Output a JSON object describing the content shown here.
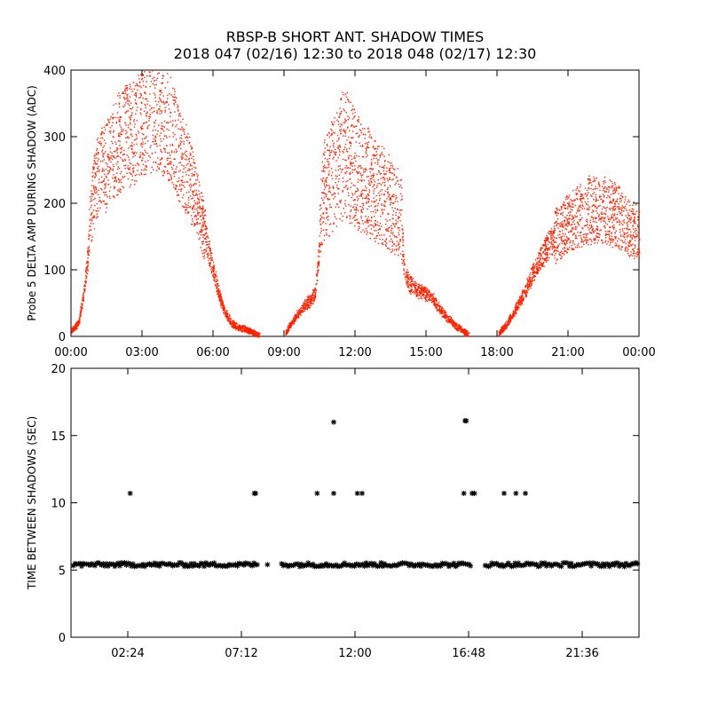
{
  "title_line1": "RBSP-B SHORT ANT. SHADOW TIMES",
  "title_line2": "2018 047 (02/16) 12:30 to 2018 048 (02/17) 12:30",
  "colors": {
    "top_series": "#ff2200",
    "bottom_series": "#000000",
    "axes": "#000000"
  },
  "chart_data": [
    {
      "type": "scatter",
      "title": "",
      "ylabel": "Probe 5 DELTA AMP DURING SHADOW (ADC)",
      "xlabel": "",
      "x_unit": "hours",
      "xlim": [
        0,
        24
      ],
      "ylim": [
        0,
        400
      ],
      "x_ticks": [
        0,
        3,
        6,
        9,
        12,
        15,
        18,
        21,
        24
      ],
      "x_tick_labels": [
        "00:00",
        "03:00",
        "06:00",
        "09:00",
        "12:00",
        "15:00",
        "18:00",
        "21:00",
        "00:00"
      ],
      "y_ticks": [
        0,
        100,
        200,
        300,
        400
      ],
      "y_tick_labels": [
        "0",
        "100",
        "200",
        "300",
        "400"
      ],
      "grid": false,
      "series": [
        {
          "x": [
            0.0,
            0.3,
            0.5,
            0.7,
            0.8,
            1.0,
            1.3,
            1.7,
            2.0,
            2.3,
            2.6,
            3.0,
            3.3,
            3.6,
            4.0,
            4.3,
            4.6,
            5.0,
            5.3,
            5.6,
            5.8,
            6.0,
            6.2,
            6.4,
            6.6,
            6.8,
            7.0,
            7.3,
            7.6,
            7.8,
            7.95,
            9.05,
            9.2,
            9.5,
            9.8,
            10.1,
            10.3,
            10.45,
            10.55,
            10.7,
            11.0,
            11.3,
            11.5,
            11.7,
            12.0,
            12.3,
            12.6,
            12.9,
            13.2,
            13.5,
            13.8,
            13.95,
            14.05,
            14.3,
            14.6,
            15.0,
            15.3,
            15.6,
            15.9,
            16.2,
            16.5,
            16.8,
            18.05,
            18.3,
            18.6,
            18.9,
            19.2,
            19.5,
            19.8,
            20.1,
            20.4,
            20.7,
            21.0,
            21.3,
            21.6,
            21.9,
            22.2,
            22.5,
            22.8,
            23.1,
            23.4,
            23.7,
            24.0
          ],
          "y": [
            10,
            20,
            60,
            120,
            180,
            230,
            250,
            270,
            290,
            300,
            310,
            320,
            330,
            335,
            320,
            300,
            270,
            240,
            200,
            160,
            130,
            100,
            70,
            45,
            30,
            20,
            15,
            12,
            8,
            4,
            2,
            5,
            15,
            30,
            45,
            55,
            65,
            120,
            200,
            220,
            240,
            260,
            280,
            270,
            250,
            240,
            230,
            220,
            210,
            200,
            190,
            180,
            100,
            80,
            70,
            65,
            55,
            40,
            28,
            18,
            10,
            3,
            5,
            15,
            30,
            50,
            70,
            95,
            115,
            135,
            150,
            160,
            170,
            178,
            184,
            190,
            192,
            190,
            186,
            180,
            170,
            160,
            150
          ]
        }
      ]
    },
    {
      "type": "scatter",
      "title": "",
      "ylabel": "TIME BETWEEN SHADOWS (SEC)",
      "xlabel": "",
      "x_unit": "hours",
      "xlim": [
        0,
        24
      ],
      "ylim": [
        0,
        20
      ],
      "x_ticks": [
        2.4,
        7.2,
        12.0,
        16.8,
        21.6
      ],
      "x_tick_labels": [
        "02:24",
        "07:12",
        "12:00",
        "16:48",
        "21:36"
      ],
      "y_ticks": [
        0,
        5,
        10,
        15,
        20
      ],
      "y_tick_labels": [
        "0",
        "5",
        "10",
        "15",
        "20"
      ],
      "grid": false,
      "marker": "asterisk",
      "series": [
        {
          "baseline_y": 5.4,
          "baseline_ranges": [
            [
              0.1,
              7.9
            ],
            [
              8.3,
              8.3
            ],
            [
              8.9,
              16.95
            ],
            [
              17.5,
              24.0
            ]
          ],
          "outliers_x": [
            2.5,
            7.75,
            7.8,
            10.4,
            11.1,
            11.1,
            12.1,
            12.3,
            16.6,
            16.65,
            16.7,
            16.95,
            17.05,
            18.3,
            18.8,
            19.2
          ],
          "outliers_y": [
            10.7,
            10.7,
            10.7,
            10.7,
            10.7,
            16.0,
            10.7,
            10.7,
            10.7,
            16.1,
            16.1,
            10.7,
            10.7,
            10.7,
            10.7,
            10.7
          ]
        }
      ]
    }
  ]
}
